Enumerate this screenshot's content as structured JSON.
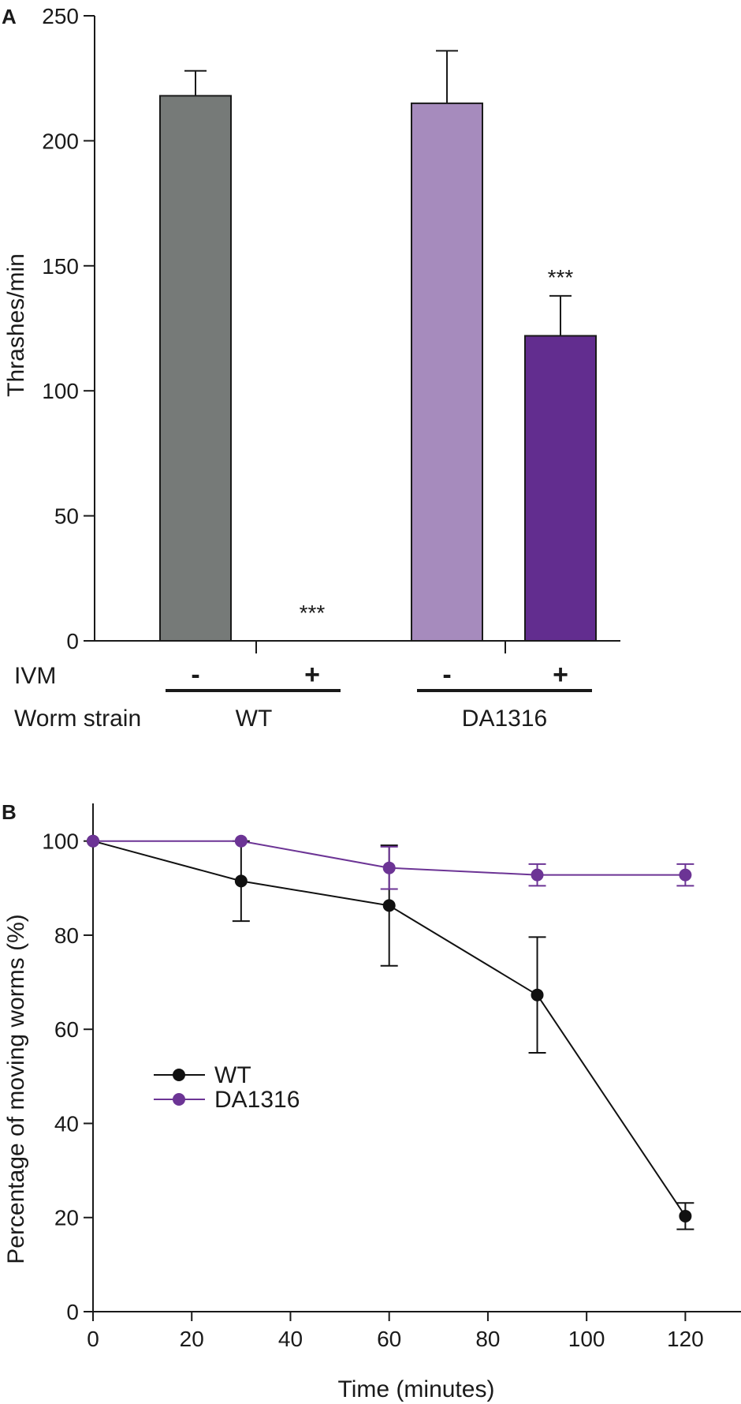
{
  "chart_data": [
    {
      "panel": "A",
      "type": "bar",
      "ylabel": "Thrashes/min",
      "ylim": [
        0,
        250
      ],
      "yticks": [
        0,
        50,
        100,
        150,
        200,
        250
      ],
      "row_labels": {
        "ivm": "IVM",
        "strain": "Worm strain"
      },
      "groups": [
        {
          "strain": "WT",
          "bars": [
            {
              "ivm": "-",
              "value": 218,
              "error": 10,
              "color": "#767a78",
              "annotation": ""
            },
            {
              "ivm": "+",
              "value": 0,
              "error": 0,
              "color": "#767a78",
              "annotation": "***"
            }
          ]
        },
        {
          "strain": "DA1316",
          "bars": [
            {
              "ivm": "-",
              "value": 215,
              "error": 21,
              "color": "#a68bbd",
              "annotation": ""
            },
            {
              "ivm": "+",
              "value": 122,
              "error": 16,
              "color": "#622d8f",
              "annotation": "***"
            }
          ]
        }
      ]
    },
    {
      "panel": "B",
      "type": "line",
      "xlabel": "Time (minutes)",
      "ylabel": "Percentage of moving worms (%)",
      "xlim": [
        0,
        130
      ],
      "ylim": [
        0,
        108
      ],
      "xticks": [
        0,
        20,
        40,
        60,
        80,
        100,
        120
      ],
      "yticks": [
        0,
        20,
        40,
        60,
        80,
        100
      ],
      "legend_position": "center-left",
      "series": [
        {
          "name": "WT",
          "color": "#111111",
          "x": [
            0,
            30,
            60,
            90,
            120
          ],
          "y": [
            100,
            91.5,
            86.3,
            67.3,
            20.3
          ],
          "err": [
            0,
            8.5,
            12.8,
            12.3,
            2.8
          ]
        },
        {
          "name": "DA1316",
          "color": "#6c3495",
          "x": [
            0,
            30,
            60,
            90,
            120
          ],
          "y": [
            100,
            100,
            94.3,
            92.8,
            92.8
          ],
          "err": [
            0,
            0,
            4.5,
            2.3,
            2.3
          ]
        }
      ]
    }
  ]
}
